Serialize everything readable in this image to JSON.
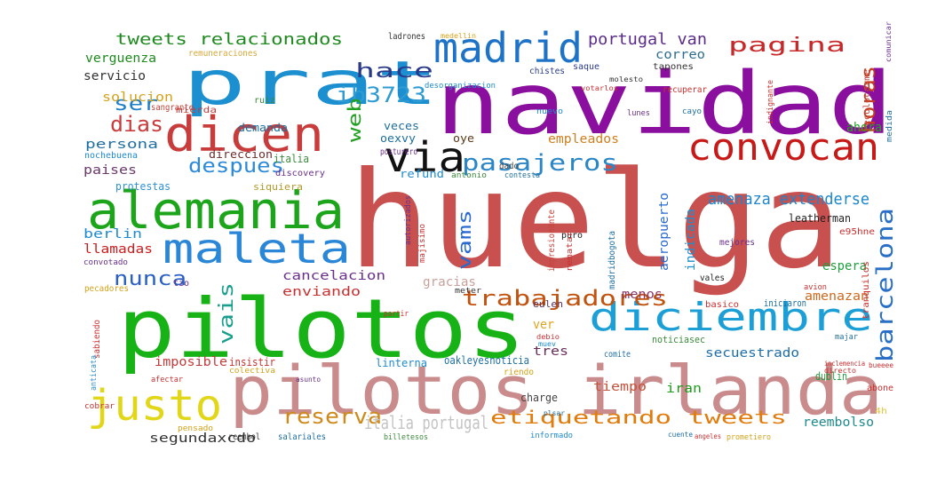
{
  "words": [
    {
      "text": "huelga",
      "color": "#c8504f"
    },
    {
      "text": "navidad",
      "color": "#8b0f9e"
    },
    {
      "text": "pilotos",
      "color": "#17b316"
    },
    {
      "text": "pilotos irlanda",
      "color": "#c98b8c"
    },
    {
      "text": "prat",
      "color": "#1b8fd0"
    },
    {
      "text": "alemania",
      "color": "#1ca51b"
    },
    {
      "text": "maleta",
      "color": "#2a86d6"
    },
    {
      "text": "dicen",
      "color": "#c83c3c"
    },
    {
      "text": "madrid",
      "color": "#1f73c6"
    },
    {
      "text": "via",
      "color": "#111111"
    },
    {
      "text": "convocan",
      "color": "#c81919"
    },
    {
      "text": "diciembre",
      "color": "#1b9fd6"
    },
    {
      "text": "justo",
      "color": "#e2d619"
    },
    {
      "text": "pasajeros",
      "color": "#2a86c6"
    },
    {
      "text": "barcelona",
      "color": "#2a6fc6"
    },
    {
      "text": "trabajadores",
      "color": "#c2530f"
    },
    {
      "text": "reserva",
      "color": "#cf8a1c"
    },
    {
      "text": "etiquetando tweets",
      "color": "#e07b0c"
    },
    {
      "text": "italia portugal",
      "color": "#c4c4c4"
    },
    {
      "text": "tweets relacionados",
      "color": "#1e8a1e"
    },
    {
      "text": "pagina",
      "color": "#c82828"
    },
    {
      "text": "horas",
      "color": "#c63c1c"
    },
    {
      "text": "ib3723",
      "color": "#2f9bd3"
    },
    {
      "text": "hace",
      "color": "#2a3a8a"
    },
    {
      "text": "despues",
      "color": "#2d8ad9"
    },
    {
      "text": "dias",
      "color": "#c93d3d"
    },
    {
      "text": "ser",
      "color": "#1c7ecb"
    },
    {
      "text": "nunca",
      "color": "#2a5fc3"
    },
    {
      "text": "vais",
      "color": "#1a9e8e"
    },
    {
      "text": "web",
      "color": "#22a022"
    },
    {
      "text": "vams",
      "color": "#2a6ad0"
    },
    {
      "text": "amenaza extenderse",
      "color": "#1d86cc"
    },
    {
      "text": "portugal van",
      "color": "#5a2b8a"
    },
    {
      "text": "correo",
      "color": "#2f6e8e"
    },
    {
      "text": "verguenza",
      "color": "#1d8a1d"
    },
    {
      "text": "servicio",
      "color": "#333333"
    },
    {
      "text": "solucion",
      "color": "#d4a21a"
    },
    {
      "text": "persona",
      "color": "#1f6e9f"
    },
    {
      "text": "paises",
      "color": "#6a3a6a"
    },
    {
      "text": "berlin",
      "color": "#1f8ad0"
    },
    {
      "text": "llamadas",
      "color": "#cc1d1d"
    },
    {
      "text": "cancelacion",
      "color": "#6a2f8a"
    },
    {
      "text": "enviando",
      "color": "#c83030"
    },
    {
      "text": "imposible",
      "color": "#c33c3c"
    },
    {
      "text": "segundaxcdo",
      "color": "#333333"
    },
    {
      "text": "secuestrado",
      "color": "#1e6ea8"
    },
    {
      "text": "tres",
      "color": "#6a2f5a"
    },
    {
      "text": "tiempo",
      "color": "#c6533c"
    },
    {
      "text": "iran",
      "color": "#1e9e1e"
    },
    {
      "text": "reembolso",
      "color": "#1e8a8a"
    },
    {
      "text": "empleados",
      "color": "#cf7f1f"
    },
    {
      "text": "aeropuerto",
      "color": "#2a6ad0"
    },
    {
      "text": "indicada",
      "color": "#1e8fcf"
    },
    {
      "text": "espera",
      "color": "#1e9e3c"
    },
    {
      "text": "amenazan",
      "color": "#cc6a1f"
    },
    {
      "text": "ahora",
      "color": "#26a226"
    },
    {
      "text": "gracias",
      "color": "#c9a19b"
    },
    {
      "text": "menos",
      "color": "#8a3a6a"
    },
    {
      "text": "ver",
      "color": "#e0a41c"
    },
    {
      "text": "demanda",
      "color": "#1e6e9e"
    },
    {
      "text": "direccion",
      "color": "#6a2f2f"
    },
    {
      "text": "italia",
      "color": "#3a8a3a"
    },
    {
      "text": "veces",
      "color": "#1e6e9e"
    },
    {
      "text": "oexvy",
      "color": "#1e6e9e"
    },
    {
      "text": "oye",
      "color": "#5a3a1a"
    },
    {
      "text": "refund",
      "color": "#1e8acf"
    },
    {
      "text": "protestas",
      "color": "#2f8fcf"
    },
    {
      "text": "siquiera",
      "color": "#b09a2a"
    },
    {
      "text": "discovery",
      "color": "#6a2f8a"
    },
    {
      "text": "nochebuena",
      "color": "#1e8acf"
    },
    {
      "text": "mierda",
      "color": "#c33c3c"
    },
    {
      "text": "sangrante",
      "color": "#c3453c"
    },
    {
      "text": "leatherman",
      "color": "#222222"
    },
    {
      "text": "e95hne",
      "color": "#c83030"
    },
    {
      "text": "mejores",
      "color": "#6a2f8a"
    },
    {
      "text": "puro",
      "color": "#222222"
    },
    {
      "text": "vales",
      "color": "#222222"
    },
    {
      "text": "linterna",
      "color": "#1e8acf"
    },
    {
      "text": "oakleyesnoticia",
      "color": "#1e6e9e"
    },
    {
      "text": "insistir",
      "color": "#c83030"
    },
    {
      "text": "eulen",
      "color": "#5a2f5a"
    },
    {
      "text": "comite",
      "color": "#1e6ea8"
    },
    {
      "text": "dublin",
      "color": "#1e9e3c"
    },
    {
      "text": "charge",
      "color": "#444444"
    },
    {
      "text": "abone",
      "color": "#c83030"
    },
    {
      "text": "reembol",
      "color": "#333333"
    },
    {
      "text": "salariales",
      "color": "#1e6e9e"
    },
    {
      "text": "ladrones",
      "color": "#333333"
    },
    {
      "text": "remuneraciones",
      "color": "#d5a83a"
    },
    {
      "text": "chistes",
      "color": "#2a3a8a"
    },
    {
      "text": "saque",
      "color": "#2a3a8a"
    },
    {
      "text": "tapones",
      "color": "#333333"
    },
    {
      "text": "recuperar",
      "color": "#c83030"
    },
    {
      "text": "recolocarme",
      "color": "#c3453c"
    },
    {
      "text": "tranquilos",
      "color": "#c83030"
    },
    {
      "text": "ruiz",
      "color": "#3a8a3a"
    },
    {
      "text": "posturero",
      "color": "#6a2f8a"
    },
    {
      "text": "dado",
      "color": "#444444"
    },
    {
      "text": "antonio",
      "color": "#3a8a3a"
    },
    {
      "text": "contesta",
      "color": "#1e6e9e"
    },
    {
      "text": "autorizados",
      "color": "#6a2f8a"
    },
    {
      "text": "majisimo",
      "color": "#c83030"
    },
    {
      "text": "madridbogota",
      "color": "#1e6e9e"
    },
    {
      "text": "impresionante",
      "color": "#c3453c"
    },
    {
      "text": "rematar",
      "color": "#c83030"
    },
    {
      "text": "tio",
      "color": "#6a2f8a"
    },
    {
      "text": "sabiendo",
      "color": "#c83030"
    },
    {
      "text": "anticata",
      "color": "#2f8fcf"
    },
    {
      "text": "cobrar",
      "color": "#c83030"
    },
    {
      "text": "pecadores",
      "color": "#d4a21a"
    },
    {
      "text": "convotado",
      "color": "#6a2f8a"
    },
    {
      "text": "pensado",
      "color": "#d4a21a"
    },
    {
      "text": "noticiasec",
      "color": "#3a8a3a"
    },
    {
      "text": "iniciaron",
      "color": "#1e6e9e"
    },
    {
      "text": "majar",
      "color": "#1e6e9e"
    },
    {
      "text": "basico",
      "color": "#c83030"
    },
    {
      "text": "riendo",
      "color": "#d4a21a"
    },
    {
      "text": "partir",
      "color": "#c83030"
    },
    {
      "text": "nuevo",
      "color": "#1e8acf"
    },
    {
      "text": "informado",
      "color": "#1e8acf"
    },
    {
      "text": "prometiero",
      "color": "#d4a21a"
    },
    {
      "text": "billetesos",
      "color": "#3a8a3a"
    },
    {
      "text": "4h",
      "color": "#e0c840"
    },
    {
      "text": "bueeee",
      "color": "#c83030"
    },
    {
      "text": "comunicar",
      "color": "#6a2f8a"
    },
    {
      "text": "medida",
      "color": "#1e6e9e"
    },
    {
      "text": "cayo",
      "color": "#1e6e9e"
    },
    {
      "text": "lunes",
      "color": "#6a2f8a"
    },
    {
      "text": "avion",
      "color": "#c83030"
    },
    {
      "text": "meter",
      "color": "#333333"
    },
    {
      "text": "desorganizacion",
      "color": "#1e8acf"
    },
    {
      "text": "molesto",
      "color": "#333333"
    },
    {
      "text": "votarlos",
      "color": "#c83030"
    },
    {
      "text": "medellin",
      "color": "#d4a21a"
    },
    {
      "text": "indignante",
      "color": "#c83030"
    },
    {
      "text": "afectar",
      "color": "#c83030"
    },
    {
      "text": "colectiva",
      "color": "#d4a21a"
    },
    {
      "text": "asunto",
      "color": "#6a2f8a"
    },
    {
      "text": "plsar",
      "color": "#1e6e9e"
    },
    {
      "text": "debio",
      "color": "#c83030"
    },
    {
      "text": "muev",
      "color": "#1e8acf"
    },
    {
      "text": "cuente",
      "color": "#1e6e9e"
    },
    {
      "text": "angeles",
      "color": "#c83030"
    },
    {
      "text": "inclemencia",
      "color": "#c83030"
    },
    {
      "text": "directo",
      "color": "#c83030"
    }
  ]
}
